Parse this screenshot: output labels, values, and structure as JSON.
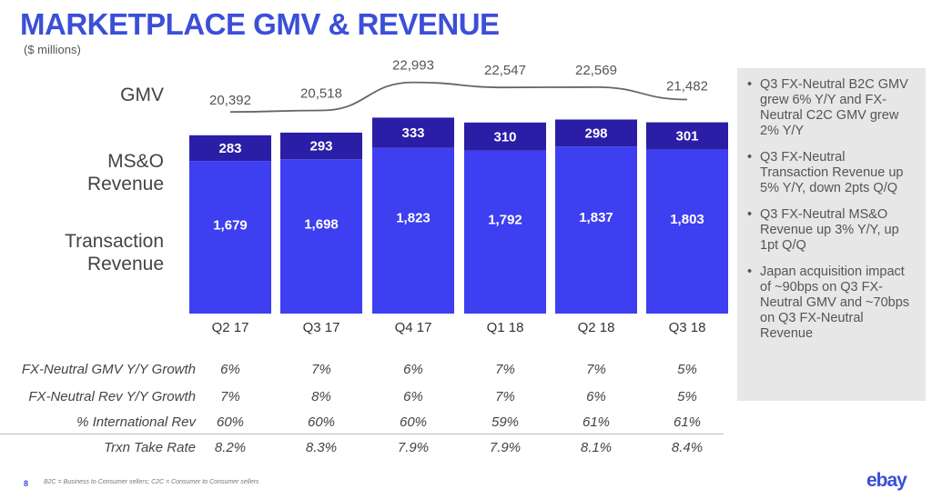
{
  "title": "MARKETPLACE GMV & REVENUE",
  "subtitle": "($ millions)",
  "row_labels": {
    "gmv": "GMV",
    "mso_line1": "MS&O",
    "mso_line2": "Revenue",
    "trx_line1": "Transaction",
    "trx_line2": "Revenue"
  },
  "chart_data": {
    "type": "bar",
    "stacked": true,
    "categories": [
      "Q2 17",
      "Q3 17",
      "Q4 17",
      "Q1 18",
      "Q2 18",
      "Q3 18"
    ],
    "series": [
      {
        "name": "Transaction Revenue",
        "values": [
          1679,
          1698,
          1823,
          1792,
          1837,
          1803
        ],
        "labels": [
          "1,679",
          "1,698",
          "1,823",
          "1,792",
          "1,837",
          "1,803"
        ],
        "color": "#3d3ff0"
      },
      {
        "name": "MS&O Revenue",
        "values": [
          283,
          293,
          333,
          310,
          298,
          301
        ],
        "labels": [
          "283",
          "293",
          "333",
          "310",
          "298",
          "301"
        ],
        "color": "#2a1ea6"
      }
    ],
    "line": {
      "name": "GMV",
      "values": [
        20392,
        20518,
        22993,
        22547,
        22569,
        21482
      ],
      "labels": [
        "20,392",
        "20,518",
        "22,993",
        "22,547",
        "22,569",
        "21,482"
      ],
      "color": "#666666"
    },
    "ylim": [
      0,
      2200
    ]
  },
  "metrics": [
    {
      "label": "FX-Neutral GMV Y/Y Growth",
      "values": [
        "6%",
        "7%",
        "6%",
        "7%",
        "7%",
        "5%"
      ]
    },
    {
      "label": "FX-Neutral Rev Y/Y Growth",
      "values": [
        "7%",
        "8%",
        "6%",
        "7%",
        "6%",
        "5%"
      ]
    },
    {
      "label": "% International Rev",
      "values": [
        "60%",
        "60%",
        "60%",
        "59%",
        "61%",
        "61%"
      ]
    },
    {
      "label": "Trxn Take Rate",
      "values": [
        "8.2%",
        "8.3%",
        "7.9%",
        "7.9%",
        "8.1%",
        "8.4%"
      ]
    }
  ],
  "bullets": [
    "Q3 FX-Neutral B2C GMV grew 6% Y/Y and FX-Neutral C2C GMV grew 2% Y/Y",
    "Q3 FX-Neutral Transaction Revenue up 5% Y/Y, down 2pts Q/Q",
    "Q3 FX-Neutral MS&O Revenue up 3% Y/Y, up 1pt Q/Q",
    "Japan acquisition impact of ~90bps on Q3 FX-Neutral GMV and ~70bps on Q3 FX-Neutral Revenue"
  ],
  "footer": {
    "page_number": "8",
    "footnote": "B2C = Business to Consumer sellers; C2C = Consumer to Consumer sellers",
    "logo": "ebay"
  }
}
